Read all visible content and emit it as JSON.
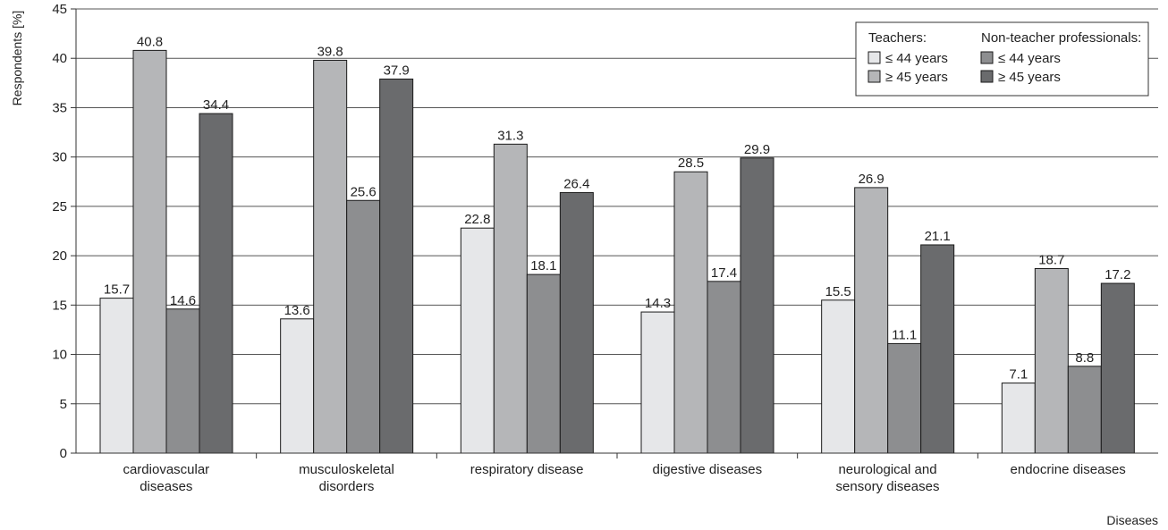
{
  "chart_data": {
    "type": "bar",
    "title": "",
    "xlabel": "Diseases",
    "ylabel": "Respondents [%]",
    "ylim": [
      0,
      45
    ],
    "yticks": [
      0,
      5,
      10,
      15,
      20,
      25,
      30,
      35,
      40,
      45
    ],
    "grid": true,
    "legend_position": "top-right",
    "categories": [
      [
        "cardiovascular",
        "diseases"
      ],
      [
        "musculoskeletal",
        "disorders"
      ],
      [
        "respiratory disease"
      ],
      [
        "digestive diseases"
      ],
      [
        "neurological and",
        "sensory diseases"
      ],
      [
        "endocrine diseases"
      ]
    ],
    "legend": {
      "group_titles": [
        "Teachers:",
        "Non-teacher professionals:"
      ]
    },
    "series": [
      {
        "name": "≤ 44 years",
        "group": 0,
        "color": "#e6e7e9",
        "values": [
          15.7,
          13.6,
          22.8,
          14.3,
          15.5,
          7.1
        ]
      },
      {
        "name": "≥ 45 years",
        "group": 0,
        "color": "#b5b6b8",
        "values": [
          40.8,
          39.8,
          31.3,
          28.5,
          26.9,
          18.7
        ]
      },
      {
        "name": "≤ 44 years",
        "group": 1,
        "color": "#8d8e90",
        "values": [
          14.6,
          25.6,
          18.1,
          17.4,
          11.1,
          8.8
        ]
      },
      {
        "name": "≥ 45 years",
        "group": 1,
        "color": "#6a6b6d",
        "values": [
          34.4,
          37.9,
          26.4,
          29.9,
          21.1,
          17.2
        ]
      }
    ]
  }
}
